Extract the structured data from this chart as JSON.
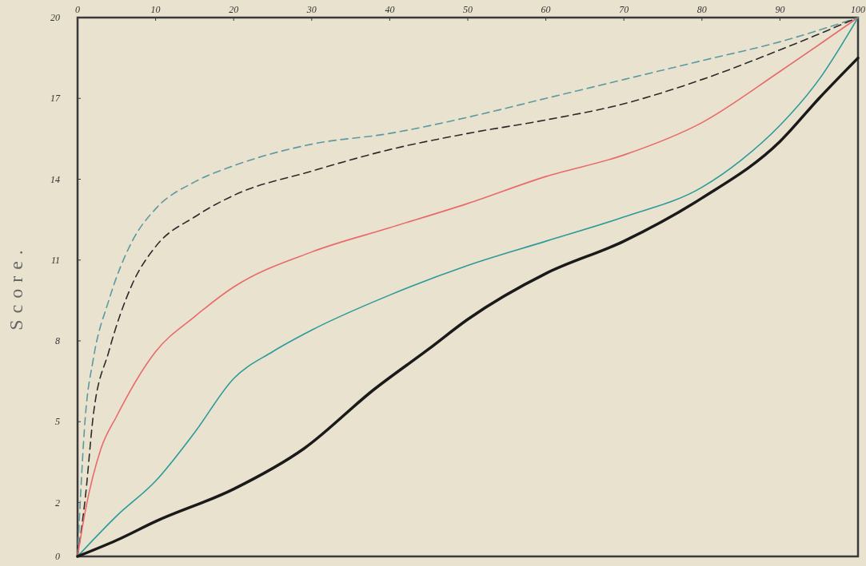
{
  "chart_data": {
    "type": "line",
    "ylabel": "Score.",
    "xlim": [
      0,
      100
    ],
    "xticks": [
      0,
      10,
      20,
      30,
      40,
      50,
      60,
      70,
      80,
      90,
      100
    ],
    "ylim": [
      0,
      20
    ],
    "yticks": [
      0,
      2,
      5,
      8,
      11,
      14,
      17,
      20
    ],
    "grid": false,
    "series": [
      {
        "color": "#5a9aa0",
        "line_style": "dashed",
        "x": [
          0,
          1,
          2,
          4,
          7,
          10,
          15,
          20,
          30,
          40,
          50,
          60,
          70,
          80,
          90,
          100
        ],
        "values": [
          0,
          5.2,
          7.3,
          9.5,
          11.7,
          12.9,
          13.9,
          14.5,
          15.3,
          15.7,
          16.3,
          17,
          17.7,
          18.4,
          19.1,
          20
        ]
      },
      {
        "color": "#2b2b2b",
        "line_style": "dashed",
        "x": [
          0,
          1,
          2,
          4,
          7,
          10,
          15,
          20,
          30,
          40,
          50,
          60,
          70,
          80,
          90,
          100
        ],
        "values": [
          0,
          2.2,
          5.2,
          7.6,
          10.1,
          11.5,
          12.6,
          13.4,
          14.3,
          15.1,
          15.7,
          16.2,
          16.8,
          17.7,
          18.8,
          20
        ]
      },
      {
        "color": "#e86a6a",
        "line_style": "solid",
        "x": [
          0,
          1,
          3,
          5,
          10,
          15,
          20,
          30,
          40,
          50,
          60,
          70,
          80,
          90,
          100
        ],
        "values": [
          0,
          1.7,
          4,
          5.2,
          7.6,
          8.9,
          10,
          11.3,
          12.2,
          13.1,
          14.1,
          14.9,
          16.1,
          18,
          20
        ]
      },
      {
        "color": "#2a9a9a",
        "line_style": "solid",
        "x": [
          0,
          5,
          10,
          15,
          20,
          25,
          30,
          40,
          50,
          60,
          70,
          80,
          85,
          90,
          95,
          100
        ],
        "values": [
          0,
          1.5,
          2.8,
          4.6,
          6.6,
          7.6,
          8.4,
          9.7,
          10.8,
          11.7,
          12.6,
          13.7,
          14.7,
          16,
          17.7,
          20
        ]
      },
      {
        "color": "#1a1a1a",
        "line_style": "solid",
        "x": [
          0,
          5,
          10,
          20,
          29,
          38,
          45,
          50,
          60,
          70,
          80,
          90,
          95,
          100
        ],
        "values": [
          0,
          0.6,
          1.3,
          2.5,
          4,
          6.2,
          7.7,
          8.8,
          10.5,
          11.7,
          13.3,
          15.4,
          17,
          18.5
        ]
      }
    ]
  }
}
